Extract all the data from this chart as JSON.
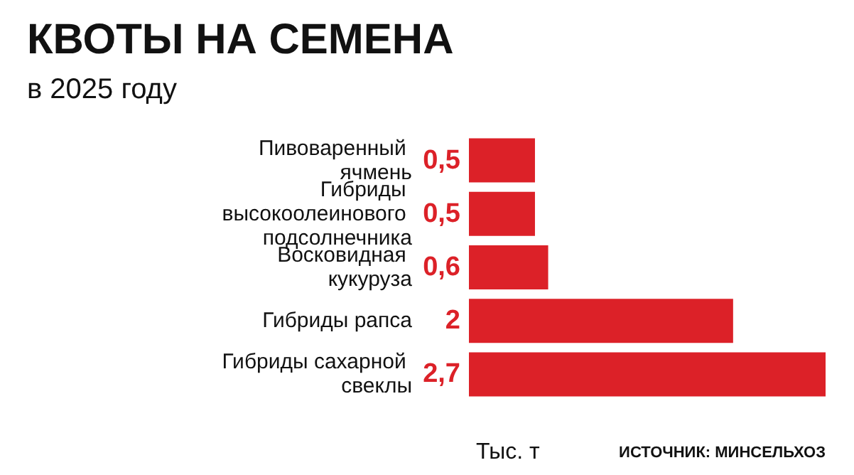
{
  "chart_data": {
    "type": "bar",
    "orientation": "horizontal",
    "title": "КВОТЫ НА СЕМЕНА",
    "subtitle": "в 2025 году",
    "categories": [
      "Пивоваренный ячмень",
      "Гибриды высокоолеинового подсолнечника",
      "Восковидная кукуруза",
      "Гибриды рапса",
      "Гибриды сахарной свеклы"
    ],
    "values": [
      0.5,
      0.5,
      0.6,
      2,
      2.7
    ],
    "color": "#dc2128",
    "value_labels": [
      "0,5",
      "0,5",
      "0,6",
      "2",
      "2,7"
    ],
    "xlabel": "Тыс. т",
    "annotations": [
      "ИСТОЧНИК: МИНСЕЛЬХОЗ"
    ]
  }
}
